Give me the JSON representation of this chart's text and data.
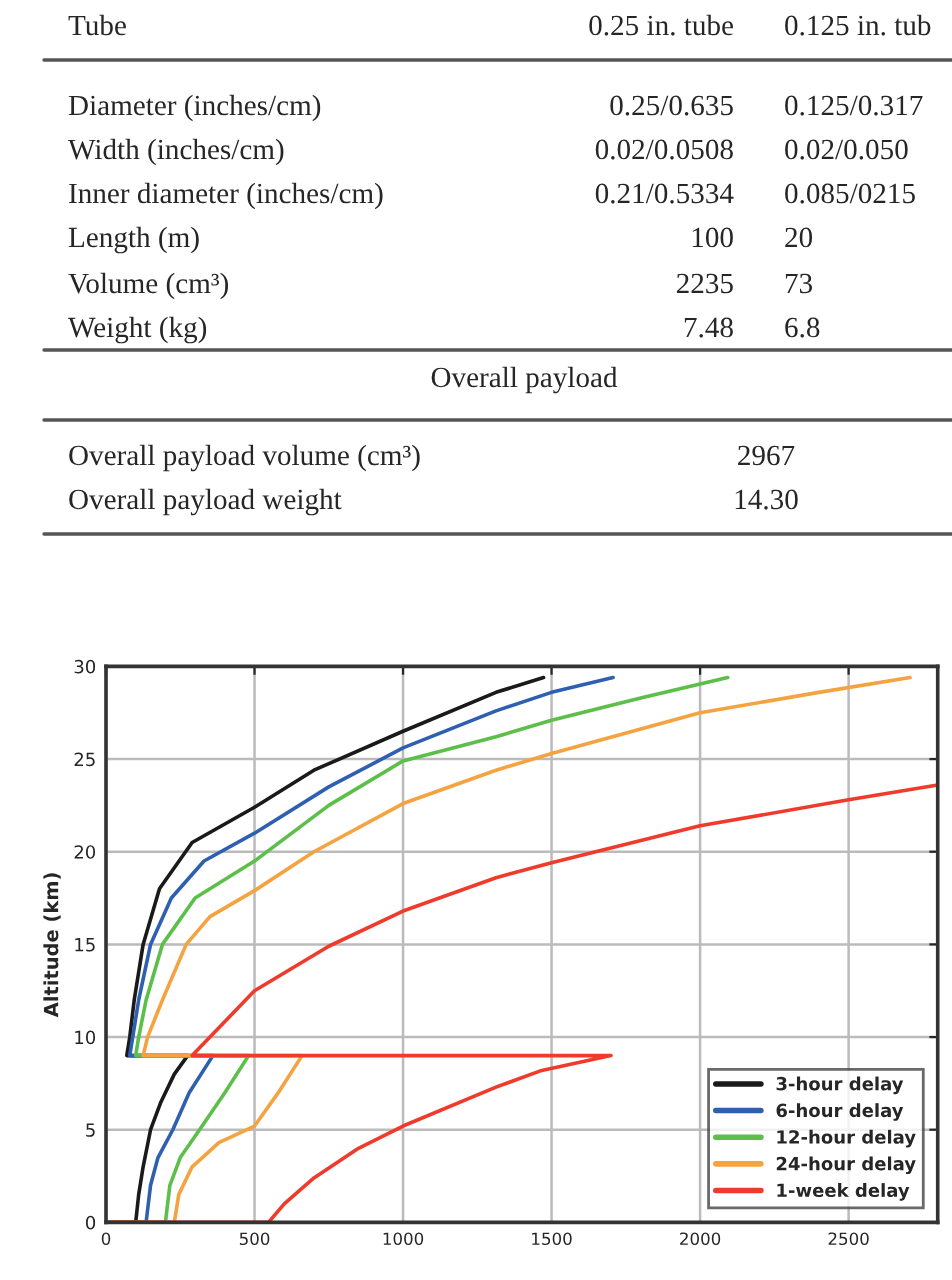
{
  "chart_data": [
    {
      "type": "other",
      "annotations": [
        "Tube",
        "0.25 in. tube",
        "0.125 in. tub",
        "Diameter (inches/cm)",
        "0.25/0.635",
        "0.125/0.317",
        "Width (inches/cm)",
        "0.02/0.0508",
        "0.02/0.050",
        "Inner diameter (inches/cm)",
        "0.21/0.5334",
        "0.085/0215",
        "Length (m)",
        "100",
        "20",
        "Volume (cm³)",
        "2235",
        "73",
        "Weight (kg)",
        "7.48",
        "6.8",
        "Overall payload",
        "Overall payload volume (cm³)",
        "2967",
        "Overall payload weight",
        "14.30"
      ]
    },
    {
      "type": "line",
      "ylabel": "Altitude (km)",
      "xlim": [
        0,
        2800
      ],
      "ylim": [
        0,
        30
      ],
      "xticks": [
        0,
        500,
        1000,
        1500,
        2000,
        2500
      ],
      "yticks": [
        0,
        5,
        10,
        15,
        20,
        25,
        30
      ],
      "grid": true,
      "legend": "bottom right",
      "line_style": "solid",
      "marker": "none",
      "series": [
        {
          "name": "3-hour delay",
          "color": "#1a1a1a",
          "x": [
            0,
            100,
            110,
            125,
            150,
            185,
            230,
            275,
            70,
            80,
            95,
            125,
            180,
            290,
            500,
            700,
            1000,
            1313,
            1473
          ],
          "values": [
            0,
            0,
            1.5,
            3,
            5,
            6.5,
            8,
            9,
            9,
            10,
            12,
            15,
            18,
            20.5,
            22.4,
            24.4,
            26.5,
            28.6,
            29.4
          ]
        },
        {
          "name": "6-hour delay",
          "color": "#2e5fb0",
          "x": [
            0,
            135,
            150,
            175,
            225,
            280,
            360,
            80,
            90,
            110,
            150,
            220,
            330,
            500,
            750,
            1000,
            1313,
            1500,
            1707
          ],
          "values": [
            0,
            0,
            2,
            3.5,
            5,
            7,
            9,
            9,
            10,
            12,
            15,
            17.5,
            19.5,
            21.0,
            23.5,
            25.6,
            27.6,
            28.6,
            29.4
          ]
        },
        {
          "name": "12-hour delay",
          "color": "#5cbf4a",
          "x": [
            0,
            200,
            215,
            250,
            315,
            400,
            480,
            100,
            110,
            135,
            190,
            300,
            500,
            750,
            1000,
            1313,
            1500,
            1800,
            2093
          ],
          "values": [
            0,
            0,
            2,
            3.5,
            5,
            7,
            9,
            9,
            10,
            12,
            15,
            17.5,
            19.5,
            22.5,
            24.9,
            26.2,
            27.1,
            28.3,
            29.4
          ]
        },
        {
          "name": "24-hour delay",
          "color": "#f5a340",
          "x": [
            0,
            230,
            245,
            290,
            380,
            500,
            580,
            660,
            125,
            140,
            190,
            270,
            350,
            500,
            700,
            1000,
            1313,
            1500,
            2000,
            2400,
            2707
          ],
          "values": [
            0,
            0,
            1.5,
            3,
            4.3,
            5.2,
            7,
            9,
            9,
            10,
            12,
            15,
            16.5,
            17.9,
            20,
            22.6,
            24.4,
            25.3,
            27.5,
            28.6,
            29.4
          ]
        },
        {
          "name": "1-week delay",
          "color": "#ee3b2b",
          "x": [
            0,
            547,
            600,
            700,
            850,
            1000,
            1313,
            1467,
            1700,
            290,
            350,
            500,
            750,
            1000,
            1313,
            1500,
            2000,
            2500,
            2800
          ],
          "values": [
            0,
            0,
            1,
            2.4,
            4,
            5.2,
            7.3,
            8.2,
            9,
            9,
            10,
            12.5,
            14.9,
            16.8,
            18.6,
            19.4,
            21.4,
            22.8,
            23.6
          ]
        }
      ]
    }
  ]
}
